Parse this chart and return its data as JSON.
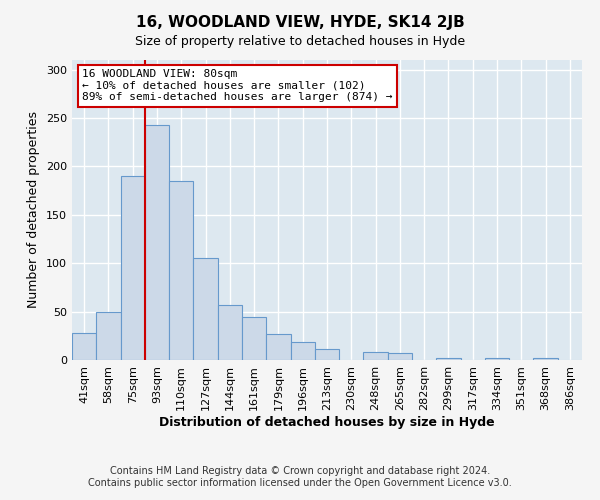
{
  "title": "16, WOODLAND VIEW, HYDE, SK14 2JB",
  "subtitle": "Size of property relative to detached houses in Hyde",
  "xlabel": "Distribution of detached houses by size in Hyde",
  "ylabel": "Number of detached properties",
  "bar_color": "#ccd9e8",
  "bar_edge_color": "#6699cc",
  "bin_labels": [
    "41sqm",
    "58sqm",
    "75sqm",
    "93sqm",
    "110sqm",
    "127sqm",
    "144sqm",
    "161sqm",
    "179sqm",
    "196sqm",
    "213sqm",
    "230sqm",
    "248sqm",
    "265sqm",
    "282sqm",
    "299sqm",
    "317sqm",
    "334sqm",
    "351sqm",
    "368sqm",
    "386sqm"
  ],
  "bar_heights": [
    28,
    50,
    190,
    243,
    185,
    105,
    57,
    44,
    27,
    19,
    11,
    0,
    8,
    7,
    0,
    2,
    0,
    2,
    0,
    2,
    0
  ],
  "ylim": [
    0,
    310
  ],
  "yticks": [
    0,
    50,
    100,
    150,
    200,
    250,
    300
  ],
  "vline_x_index": 2.5,
  "annotation_title": "16 WOODLAND VIEW: 80sqm",
  "annotation_line1": "← 10% of detached houses are smaller (102)",
  "annotation_line2": "89% of semi-detached houses are larger (874) →",
  "footnote1": "Contains HM Land Registry data © Crown copyright and database right 2024.",
  "footnote2": "Contains public sector information licensed under the Open Government Licence v3.0.",
  "fig_background_color": "#f5f5f5",
  "plot_background_color": "#dde8f0",
  "grid_color": "#ffffff",
  "annotation_box_facecolor": "#ffffff",
  "annotation_box_edgecolor": "#cc0000",
  "vline_color": "#cc0000",
  "title_fontsize": 11,
  "subtitle_fontsize": 9,
  "axis_label_fontsize": 9,
  "tick_fontsize": 8,
  "annotation_fontsize": 8,
  "footnote_fontsize": 7
}
